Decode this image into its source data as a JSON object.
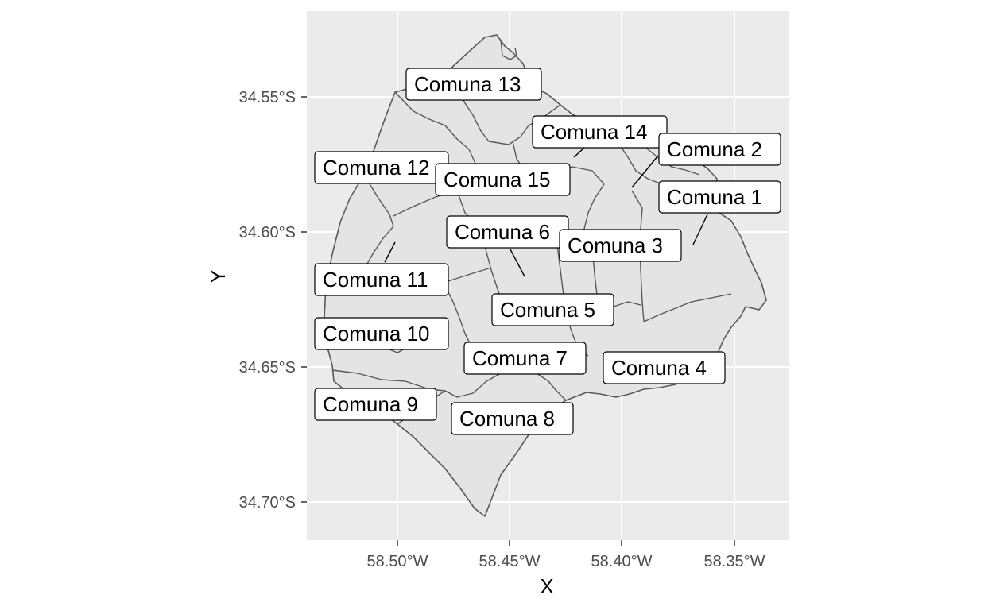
{
  "map": {
    "x_axis_title": "X",
    "y_axis_title": "Y",
    "x_ticks": [
      "58.50°W",
      "58.45°W",
      "58.40°W",
      "58.35°W"
    ],
    "y_ticks": [
      "34.55°S",
      "34.60°S",
      "34.65°S",
      "34.70°S"
    ],
    "colors": {
      "panel_background": "#ebebeb",
      "grid": "#ffffff",
      "polygon_fill": "#e4e4e4",
      "polygon_border": "#595959",
      "label_border": "#000000",
      "label_fill": "#ffffff"
    }
  },
  "labels": [
    {
      "id": "comuna-13",
      "text": "Comuna 13"
    },
    {
      "id": "comuna-14",
      "text": "Comuna 14"
    },
    {
      "id": "comuna-2",
      "text": "Comuna 2"
    },
    {
      "id": "comuna-12",
      "text": "Comuna 12"
    },
    {
      "id": "comuna-15",
      "text": "Comuna 15"
    },
    {
      "id": "comuna-1",
      "text": "Comuna 1"
    },
    {
      "id": "comuna-6",
      "text": "Comuna 6"
    },
    {
      "id": "comuna-3",
      "text": "Comuna 3"
    },
    {
      "id": "comuna-11",
      "text": "Comuna 11"
    },
    {
      "id": "comuna-5",
      "text": "Comuna 5"
    },
    {
      "id": "comuna-10",
      "text": "Comuna 10"
    },
    {
      "id": "comuna-7",
      "text": "Comuna 7"
    },
    {
      "id": "comuna-4",
      "text": "Comuna 4"
    },
    {
      "id": "comuna-9",
      "text": "Comuna 9"
    },
    {
      "id": "comuna-8",
      "text": "Comuna 8"
    }
  ]
}
